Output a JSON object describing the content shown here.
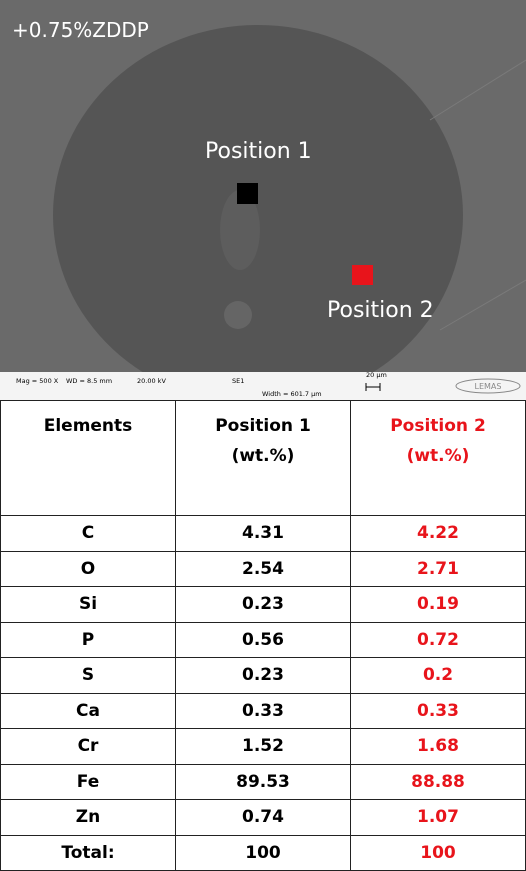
{
  "image": {
    "label": "+0.75%ZDDP",
    "markers": [
      "Position 1",
      "Position 2"
    ],
    "info_bar": {
      "mag": "Mag =  500 X",
      "wd": "WD =  8.5 mm",
      "kv": "20.00 kV",
      "detector": "SE1",
      "width": "Width = 601.7 µm",
      "scale": "20 µm",
      "logo": "LEMAS"
    }
  },
  "table": {
    "header": [
      "Elements",
      "Position 1\n(wt.%)",
      "Position 2\n(wt.%)"
    ],
    "rows": [
      [
        "C",
        "4.31",
        "4.22"
      ],
      [
        "O",
        "2.54",
        "2.71"
      ],
      [
        "Si",
        "0.23",
        "0.19"
      ],
      [
        "P",
        "0.56",
        "0.72"
      ],
      [
        "S",
        "0.23",
        "0.2"
      ],
      [
        "Ca",
        "0.33",
        "0.33"
      ],
      [
        "Cr",
        "1.52",
        "1.68"
      ],
      [
        "Fe",
        "89.53",
        "88.88"
      ],
      [
        "Zn",
        "0.74",
        "1.07"
      ],
      [
        "Total:",
        "100",
        "100"
      ]
    ]
  }
}
